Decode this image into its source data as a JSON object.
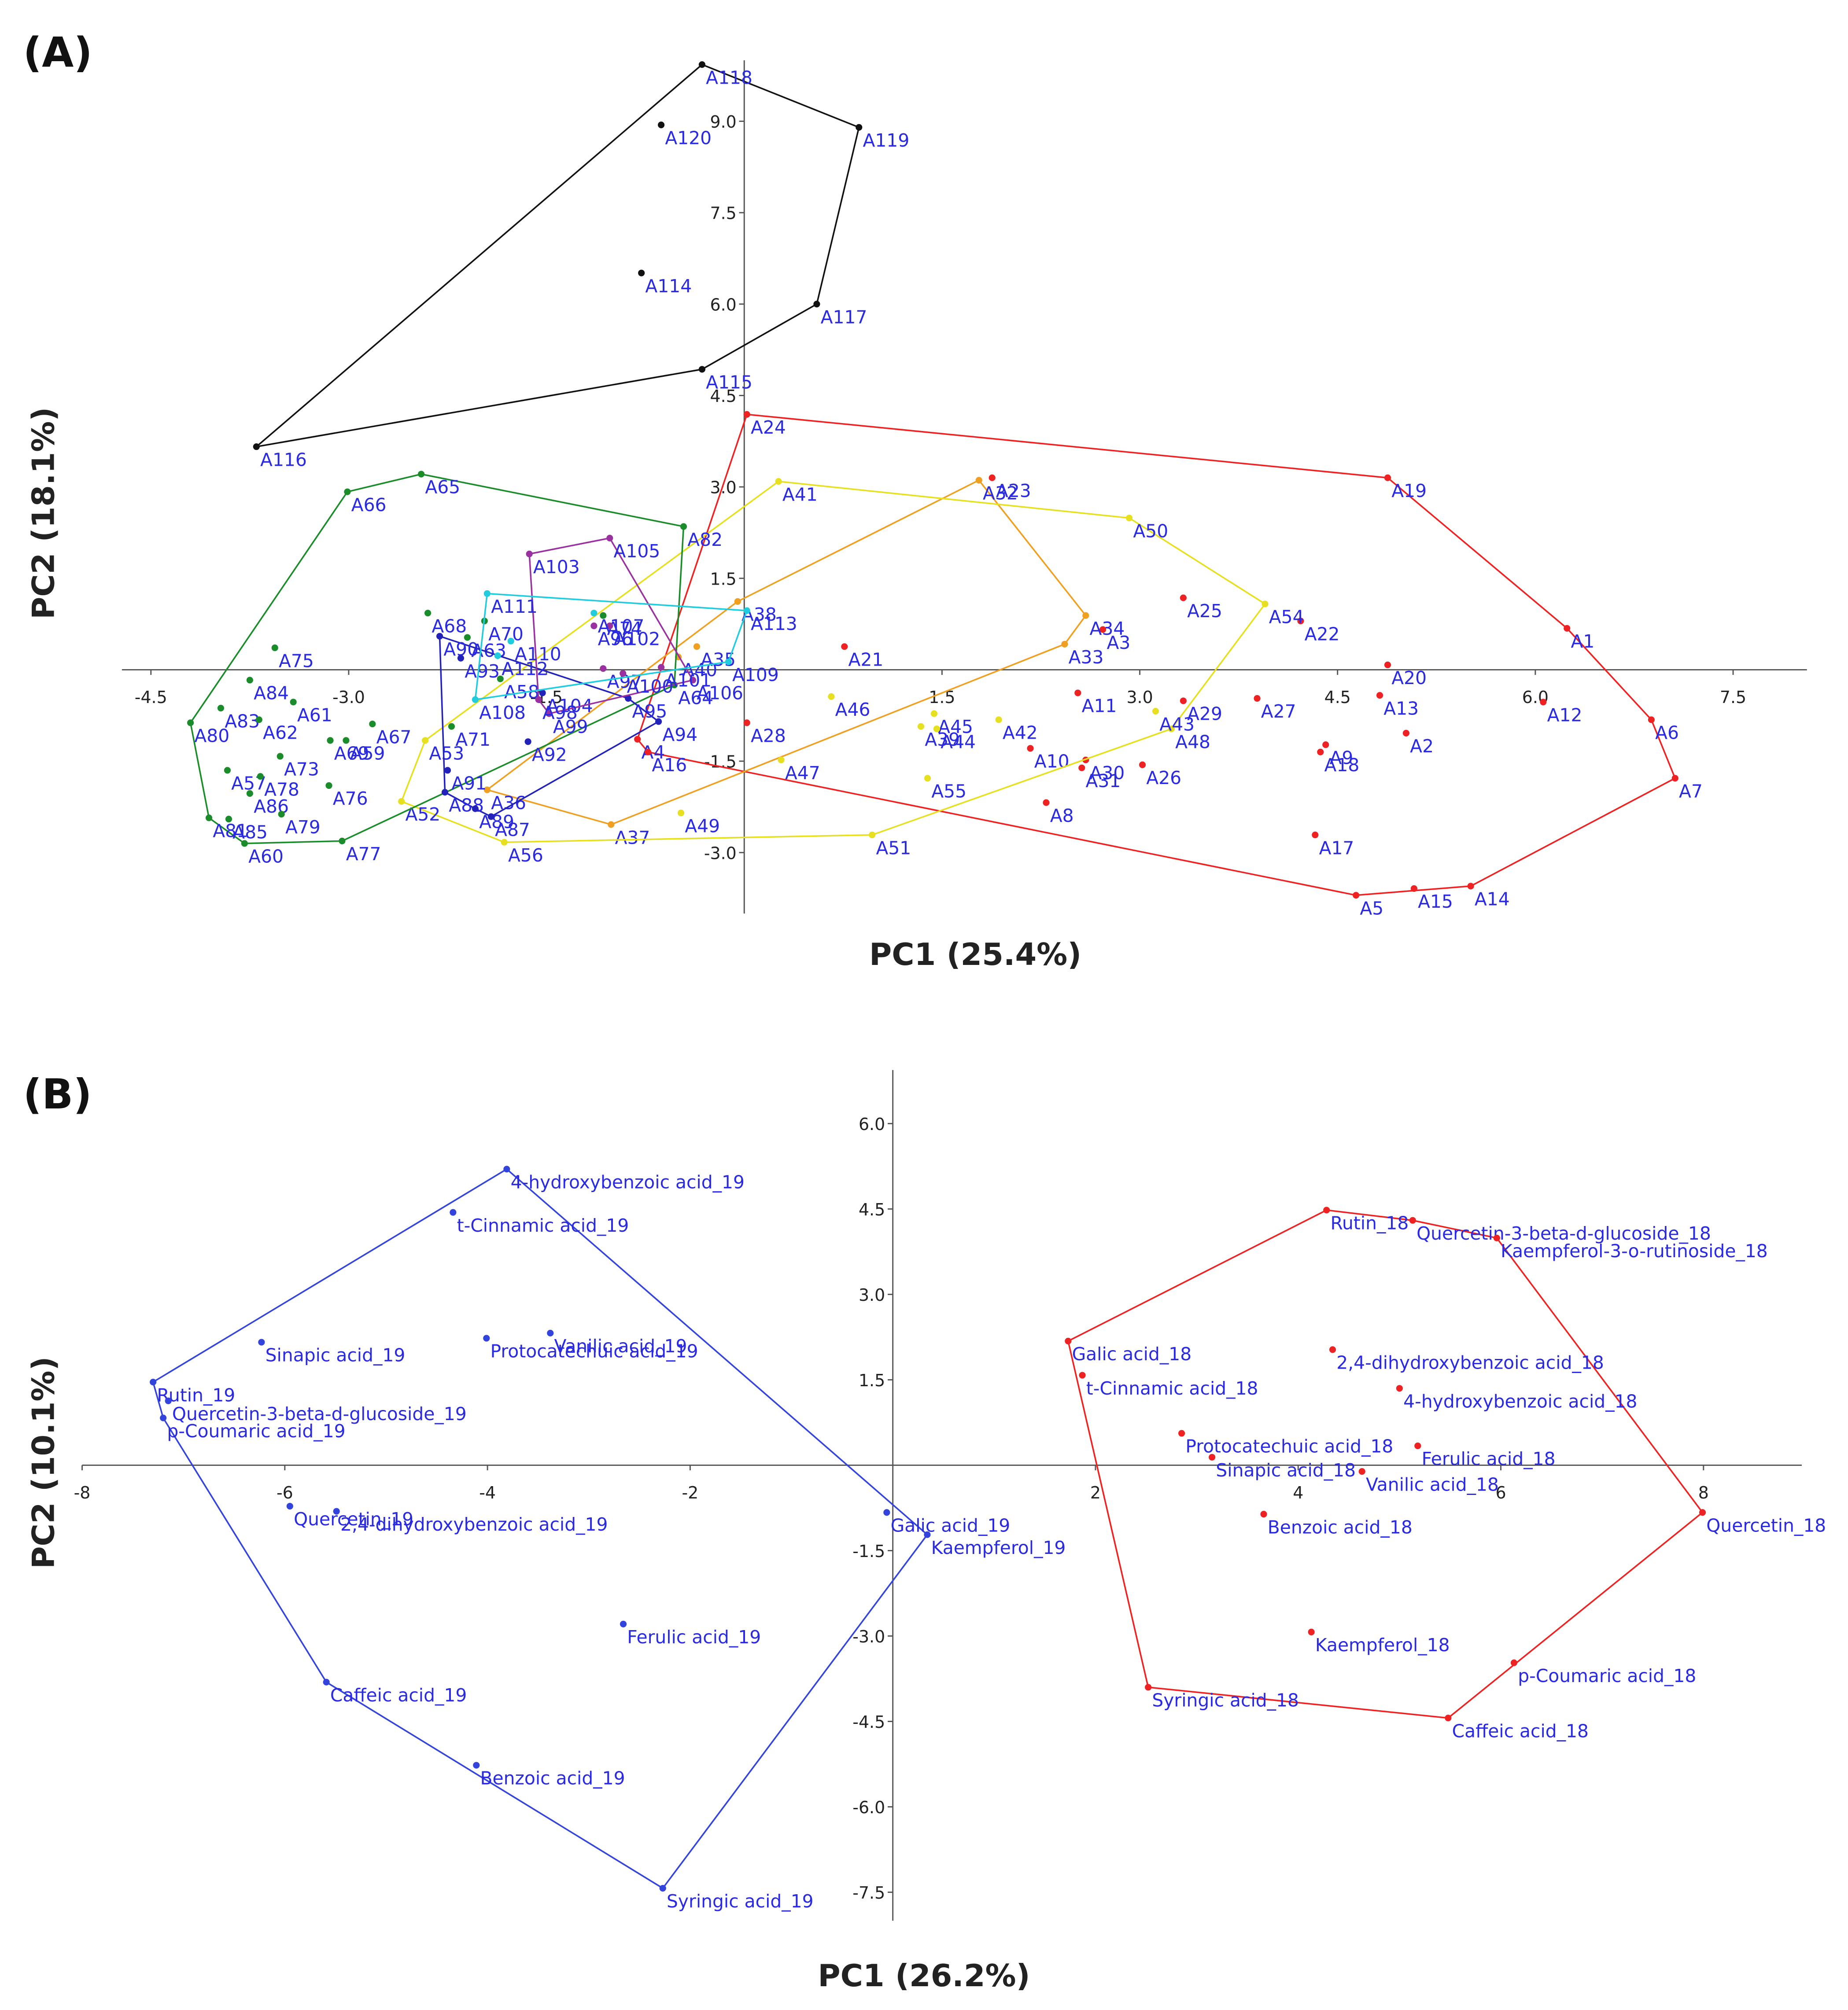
{
  "chart_data": [
    {
      "type": "scatter",
      "panel_label": "(A)",
      "xlabel": "PC1 (25.4%)",
      "ylabel": "PC2 (18.1%)",
      "xlim": [
        -4.72,
        8.06
      ],
      "ylim": [
        -4.0,
        10.0
      ],
      "xticks": [
        -4.5,
        {
          "value": -3,
          "label": "-3.0"
        },
        -1.5,
        1.5,
        {
          "value": 3,
          "label": "3.0"
        },
        4.5,
        {
          "value": 6,
          "label": "6.0"
        },
        7.5
      ],
      "yticks": [
        {
          "value": -3,
          "label": "-3.0"
        },
        -1.5,
        1.5,
        {
          "value": 3,
          "label": "3.0"
        },
        4.5,
        {
          "value": 6,
          "label": "6.0"
        },
        7.5,
        {
          "value": 9,
          "label": "9.0"
        }
      ],
      "hull": true,
      "label_color": "#2a2ae0",
      "series": [
        {
          "color": "#111111",
          "labels": [
            "A118",
            "A120",
            "A119",
            "A114",
            "A117",
            "A115",
            "A116"
          ],
          "x": [
            -0.32,
            -0.63,
            0.87,
            -0.78,
            0.55,
            -0.32,
            -3.7
          ],
          "y": [
            9.93,
            8.94,
            8.9,
            6.51,
            6.0,
            4.93,
            3.66
          ]
        },
        {
          "color": "#ee2222",
          "labels": [
            "A24",
            "A19",
            "A1",
            "A6",
            "A7",
            "A14",
            "A15",
            "A5",
            "A17",
            "A20",
            "A13",
            "A2",
            "A12",
            "A9",
            "A18",
            "A22",
            "A27",
            "A29",
            "A25",
            "A26",
            "A23",
            "A3",
            "A11",
            "A30",
            "A31",
            "A10",
            "A8",
            "A21",
            "A28",
            "A4",
            "A16"
          ],
          "x": [
            0.02,
            4.88,
            6.24,
            6.88,
            7.06,
            5.51,
            5.08,
            4.64,
            4.33,
            4.88,
            4.82,
            5.02,
            6.06,
            4.41,
            4.37,
            4.22,
            3.89,
            3.33,
            3.33,
            3.02,
            1.88,
            2.72,
            2.53,
            2.59,
            2.56,
            2.17,
            2.29,
            0.76,
            0.02,
            -0.81,
            -0.73
          ],
          "y": [
            4.19,
            3.15,
            0.68,
            -0.82,
            -1.78,
            -3.55,
            -3.59,
            -3.7,
            -2.71,
            0.08,
            -0.42,
            -1.04,
            -0.53,
            -1.23,
            -1.35,
            0.8,
            -0.47,
            -0.51,
            1.18,
            -1.56,
            3.15,
            0.66,
            -0.38,
            -1.48,
            -1.61,
            -1.29,
            -2.18,
            0.38,
            -0.87,
            -1.14,
            -1.35
          ]
        },
        {
          "color": "#f0a020",
          "labels": [
            "A32",
            "A34",
            "A33",
            "A37",
            "A36",
            "A35",
            "A40",
            "A38"
          ],
          "x": [
            1.78,
            2.59,
            2.43,
            -1.01,
            -1.95,
            -0.36,
            -0.5,
            -0.05
          ],
          "y": [
            3.11,
            0.89,
            0.42,
            -2.54,
            -1.97,
            0.38,
            0.21,
            1.12
          ]
        },
        {
          "color": "#e6e020",
          "labels": [
            "A41",
            "A50",
            "A54",
            "A48",
            "A51",
            "A56",
            "A52",
            "A53",
            "A45",
            "A39",
            "A44",
            "A46",
            "A42",
            "A55",
            "A49",
            "A47",
            "A43"
          ],
          "x": [
            0.26,
            2.92,
            3.95,
            3.24,
            0.97,
            -1.82,
            -2.6,
            -2.42,
            1.44,
            1.34,
            1.46,
            0.66,
            1.93,
            1.39,
            -0.48,
            0.28,
            3.12
          ],
          "y": [
            3.09,
            2.49,
            1.08,
            -0.97,
            -2.71,
            -2.83,
            -2.16,
            -1.16,
            -0.72,
            -0.93,
            -0.97,
            -0.44,
            -0.82,
            -1.78,
            -2.35,
            -1.48,
            -0.68
          ]
        },
        {
          "color": "#1a8c2a",
          "labels": [
            "A66",
            "A65",
            "A82",
            "A64",
            "A68",
            "A63",
            "A70",
            "A75",
            "A84",
            "A83",
            "A61",
            "A80",
            "A62",
            "A69",
            "A59",
            "A67",
            "A57",
            "A73",
            "A78",
            "A86",
            "A76",
            "A81",
            "A85",
            "A79",
            "A60",
            "A77",
            "A71",
            "A58",
            "A74"
          ],
          "x": [
            -3.01,
            -2.45,
            -0.46,
            -0.53,
            -2.4,
            -2.1,
            -1.97,
            -3.56,
            -3.75,
            -3.97,
            -3.42,
            -4.2,
            -3.68,
            -3.14,
            -3.02,
            -2.82,
            -3.92,
            -3.52,
            -3.67,
            -3.75,
            -3.15,
            -4.06,
            -3.91,
            -3.51,
            -3.79,
            -3.05,
            -2.22,
            -1.85,
            -1.07
          ],
          "y": [
            2.92,
            3.21,
            2.35,
            -0.25,
            0.93,
            0.53,
            0.8,
            0.36,
            -0.17,
            -0.63,
            -0.53,
            -0.87,
            -0.82,
            -1.16,
            -1.16,
            -0.89,
            -1.65,
            -1.42,
            -1.75,
            -2.03,
            -1.9,
            -2.43,
            -2.45,
            -2.37,
            -2.85,
            -2.81,
            -0.93,
            -0.15,
            0.89
          ]
        },
        {
          "color": "#2222bb",
          "labels": [
            "A90",
            "A93",
            "A91",
            "A88",
            "A89",
            "A87",
            "A92",
            "A94",
            "A95",
            "A104"
          ],
          "x": [
            -2.31,
            -2.15,
            -2.25,
            -2.27,
            -2.04,
            -1.92,
            -1.64,
            -0.65,
            -0.88,
            -1.53
          ],
          "y": [
            0.55,
            0.19,
            -1.65,
            -2.01,
            -2.28,
            -2.41,
            -1.18,
            -0.85,
            -0.47,
            -0.38
          ]
        },
        {
          "color": "#9932a0",
          "labels": [
            "A103",
            "A105",
            "A106",
            "A99",
            "A98",
            "A96",
            "A102",
            "A97",
            "A100",
            "A101"
          ],
          "x": [
            -1.63,
            -1.02,
            -0.39,
            -1.48,
            -1.56,
            -1.14,
            -1.02,
            -1.07,
            -0.92,
            -0.63
          ],
          "y": [
            1.9,
            2.16,
            -0.17,
            -0.72,
            -0.49,
            0.72,
            0.72,
            0.02,
            -0.06,
            0.04
          ]
        },
        {
          "color": "#20ccdd",
          "labels": [
            "A111",
            "A113",
            "A109",
            "A107",
            "A110",
            "A112",
            "A108"
          ],
          "x": [
            -1.95,
            0.02,
            -0.12,
            -1.14,
            -1.77,
            -1.87,
            -2.04
          ],
          "y": [
            1.25,
            0.97,
            0.13,
            0.93,
            0.47,
            0.23,
            -0.49
          ]
        }
      ]
    },
    {
      "type": "scatter",
      "panel_label": "(B)",
      "xlabel": "PC1 (26.2%)",
      "ylabel": "PC2 (10.1%)",
      "xlim": [
        -8,
        8.97
      ],
      "ylim": [
        -8.0,
        6.94
      ],
      "xticks": [
        -8,
        -6,
        -4,
        -2,
        2,
        4,
        6,
        8
      ],
      "yticks": [
        -7.5,
        {
          "value": -6,
          "label": "-6.0"
        },
        -4.5,
        {
          "value": -3,
          "label": "-3.0"
        },
        -1.5,
        1.5,
        {
          "value": 3,
          "label": "3.0"
        },
        4.5,
        {
          "value": 6,
          "label": "6.0"
        }
      ],
      "hull": true,
      "label_color": "#2a2ae0",
      "series": [
        {
          "color": "#3344dd",
          "labels": [
            "4-hydroxybenzoic acid_19",
            "t-Cinnamic acid_19",
            "Protocatechuic acid_19",
            "Vanilic acid_19",
            "Sinapic acid_19",
            "Rutin_19",
            "Quercetin-3-beta-d-glucoside_19",
            "p-Coumaric acid_19",
            "Quercetin_19",
            "2,4-dihydroxybenzoic acid_19",
            "Galic acid_19",
            "Kaempferol_19",
            "Ferulic acid_19",
            "Caffeic acid_19",
            "Benzoic acid_19",
            "Syringic acid_19"
          ],
          "x": [
            -3.81,
            -4.34,
            -4.01,
            -3.38,
            -6.23,
            -7.3,
            -7.15,
            -7.2,
            -5.95,
            -5.49,
            -0.06,
            0.34,
            -2.66,
            -5.59,
            -4.11,
            -2.27
          ],
          "y": [
            5.2,
            4.44,
            2.23,
            2.32,
            2.16,
            1.46,
            1.13,
            0.83,
            -0.72,
            -0.81,
            -0.83,
            -1.22,
            -2.79,
            -3.81,
            -5.27,
            -7.43
          ]
        },
        {
          "color": "#ee2222",
          "labels": [
            "Rutin_18",
            "Quercetin-3-beta-d-glucoside_18",
            "Kaempferol-3-o-rutinoside_18",
            "Galic acid_18",
            "t-Cinnamic acid_18",
            "2,4-dihydroxybenzoic acid_18",
            "4-hydroxybenzoic acid_18",
            "Protocatechuic acid_18",
            "Sinapic acid_18",
            "Ferulic acid_18",
            "Vanilic acid_18",
            "Benzoic acid_18",
            "Quercetin_18",
            "Kaempferol_18",
            "p-Coumaric acid_18",
            "Syringic acid_18",
            "Caffeic acid_18"
          ],
          "x": [
            4.28,
            5.13,
            5.96,
            1.73,
            1.87,
            4.34,
            5.0,
            2.85,
            3.15,
            5.18,
            4.63,
            3.66,
            7.99,
            4.13,
            6.13,
            2.52,
            5.48
          ],
          "y": [
            4.48,
            4.3,
            3.99,
            2.18,
            1.58,
            2.03,
            1.35,
            0.56,
            0.14,
            0.34,
            -0.11,
            -0.86,
            -0.83,
            -2.93,
            -3.47,
            -3.9,
            -4.44
          ]
        }
      ]
    }
  ]
}
